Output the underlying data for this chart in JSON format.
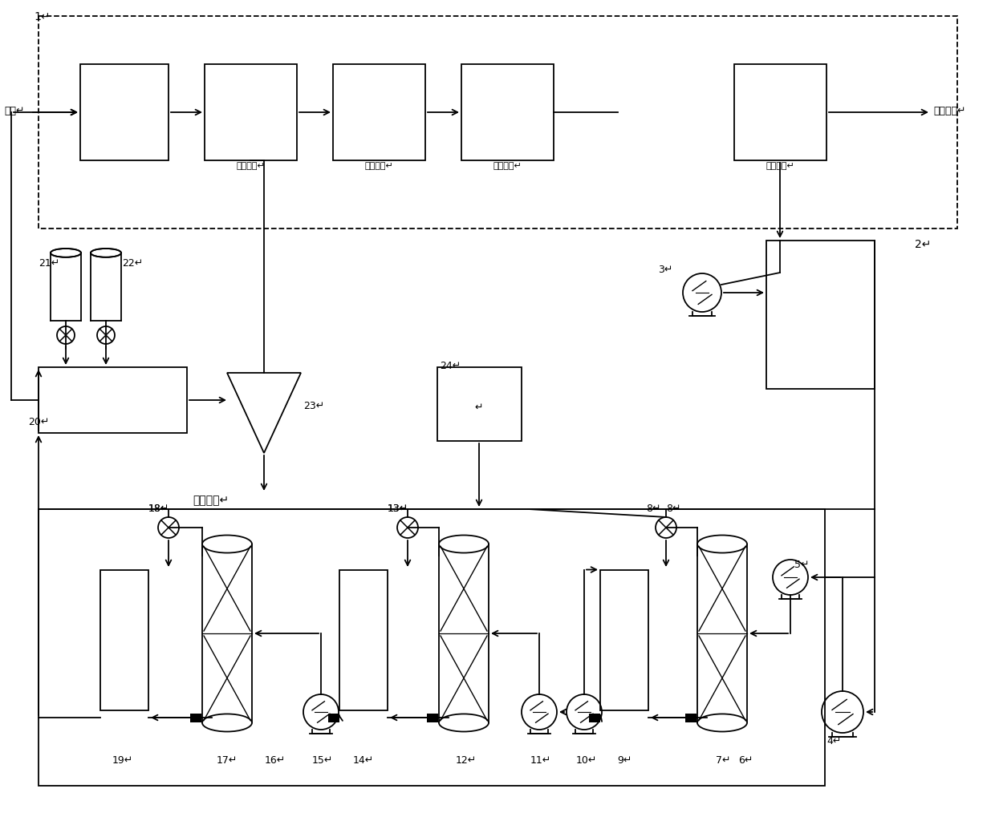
{
  "bg_color": "#ffffff",
  "fig_width": 12.4,
  "fig_height": 10.19,
  "dpi": 100,
  "chinese": {
    "jinshui": "进水",
    "chendian": "沉淀出水",
    "qiqi": "曝气反应",
    "yanyang": "厌氧反应",
    "erci": "二次曝气",
    "shengyu": "剩余污泥",
    "huishou": "回收磷肥"
  },
  "top_box_labels": [
    "曝气反应",
    "厌氧反应",
    "二次曝气",
    "剩余污泥"
  ],
  "num_labels": [
    "1",
    "2",
    "3",
    "4",
    "5",
    "6",
    "7",
    "8",
    "9",
    "10",
    "11",
    "12",
    "13",
    "14",
    "15",
    "16",
    "17",
    "18",
    "19",
    "20",
    "21",
    "22",
    "23",
    "24"
  ]
}
